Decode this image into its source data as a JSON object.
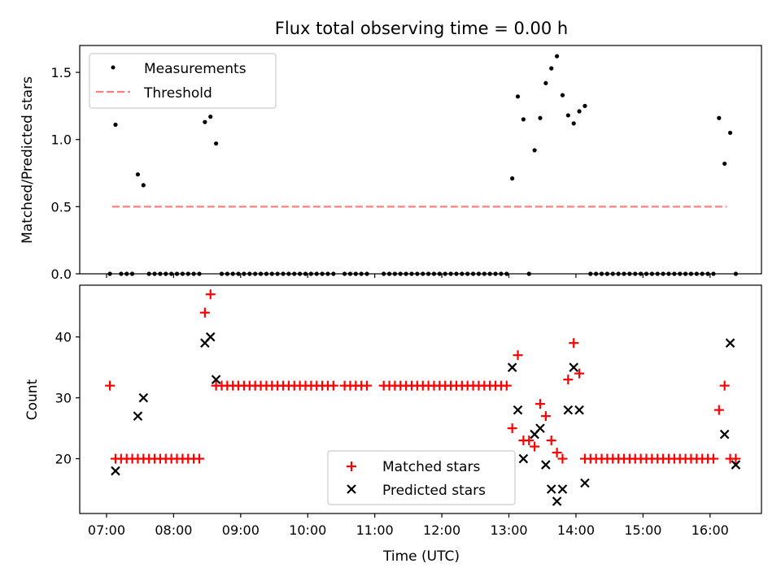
{
  "colors": {
    "measurements": "#000000",
    "threshold": "#ff7f7f",
    "matched": "#ff0000",
    "predicted": "#000000"
  },
  "chart_data": [
    {
      "type": "scatter",
      "title": "Flux total observing time = 0.00 h",
      "xlabel": "",
      "ylabel": "Matched/Predicted stars",
      "xlim": [
        "06:36",
        "16:46"
      ],
      "ylim": [
        0,
        1.7
      ],
      "yticks": [
        "0.0",
        "0.5",
        "1.0",
        "1.5"
      ],
      "legend": {
        "placement": "top-left",
        "entries": [
          "Measurements",
          "Threshold"
        ]
      },
      "threshold": {
        "name": "Threshold",
        "y": 0.5,
        "x": [
          "07:05",
          "16:15"
        ]
      },
      "series": [
        {
          "name": "Measurements",
          "x": [
            "07:03",
            "07:08",
            "07:13",
            "07:18",
            "07:23",
            "07:28",
            "07:33",
            "07:38",
            "07:43",
            "07:48",
            "07:53",
            "07:58",
            "08:03",
            "08:08",
            "08:13",
            "08:18",
            "08:23",
            "08:28",
            "08:33",
            "08:38",
            "08:43",
            "08:48",
            "08:53",
            "08:58",
            "09:03",
            "09:08",
            "09:13",
            "09:18",
            "09:23",
            "09:28",
            "09:33",
            "09:38",
            "09:43",
            "09:48",
            "09:53",
            "09:58",
            "10:03",
            "10:08",
            "10:13",
            "10:18",
            "10:23",
            "10:33",
            "10:38",
            "10:43",
            "10:48",
            "10:53",
            "11:08",
            "11:13",
            "11:18",
            "11:23",
            "11:28",
            "11:33",
            "11:38",
            "11:43",
            "11:48",
            "11:53",
            "11:58",
            "12:03",
            "12:08",
            "12:13",
            "12:18",
            "12:23",
            "12:28",
            "12:33",
            "12:38",
            "12:43",
            "12:48",
            "12:53",
            "12:58",
            "13:03",
            "13:08",
            "13:13",
            "13:18",
            "13:23",
            "13:28",
            "13:33",
            "13:38",
            "13:43",
            "13:48",
            "13:53",
            "13:58",
            "14:03",
            "14:08",
            "14:13",
            "14:18",
            "14:23",
            "14:28",
            "14:33",
            "14:38",
            "14:43",
            "14:48",
            "14:53",
            "14:58",
            "15:03",
            "15:08",
            "15:13",
            "15:18",
            "15:23",
            "15:28",
            "15:33",
            "15:38",
            "15:43",
            "15:48",
            "15:53",
            "15:58",
            "16:03",
            "16:08",
            "16:13",
            "16:18",
            "16:23"
          ],
          "y": [
            0,
            1.11,
            0,
            0,
            0,
            0.74,
            0.66,
            0,
            0,
            0,
            0,
            0,
            0,
            0,
            0,
            0,
            0,
            1.13,
            1.17,
            0.97,
            0,
            0,
            0,
            0,
            0,
            0,
            0,
            0,
            0,
            0,
            0,
            0,
            0,
            0,
            0,
            0,
            0,
            0,
            0,
            0,
            0,
            0,
            0,
            0,
            0,
            0,
            0,
            0,
            0,
            0,
            0,
            0,
            0,
            0,
            0,
            0,
            0,
            0,
            0,
            0,
            0,
            0,
            0,
            0,
            0,
            0,
            0,
            0,
            0,
            0.71,
            1.32,
            1.15,
            0,
            0.92,
            1.16,
            1.42,
            1.53,
            1.62,
            1.33,
            1.18,
            1.12,
            1.21,
            1.25,
            0,
            0,
            0,
            0,
            0,
            0,
            0,
            0,
            0,
            0,
            0,
            0,
            0,
            0,
            0,
            0,
            0,
            0,
            0,
            0,
            0,
            0,
            0,
            1.16,
            0.82,
            1.05,
            0
          ]
        }
      ]
    },
    {
      "type": "scatter",
      "title": "",
      "xlabel": "Time (UTC)",
      "ylabel": "Count",
      "xlim": [
        "06:36",
        "16:46"
      ],
      "ylim": [
        11,
        48.5
      ],
      "yticks": [
        "20",
        "30",
        "40"
      ],
      "xticks": [
        "07:00",
        "08:00",
        "09:00",
        "10:00",
        "11:00",
        "12:00",
        "13:00",
        "14:00",
        "15:00",
        "16:00"
      ],
      "legend": {
        "placement": "bottom-center",
        "entries": [
          "Matched stars",
          "Predicted stars"
        ]
      },
      "series": [
        {
          "name": "Matched stars",
          "x": [
            "07:03",
            "07:08",
            "07:13",
            "07:18",
            "07:23",
            "07:28",
            "07:33",
            "07:38",
            "07:43",
            "07:48",
            "07:53",
            "07:58",
            "08:03",
            "08:08",
            "08:13",
            "08:18",
            "08:23",
            "08:28",
            "08:33",
            "08:38",
            "08:43",
            "08:48",
            "08:53",
            "08:58",
            "09:03",
            "09:08",
            "09:13",
            "09:18",
            "09:23",
            "09:28",
            "09:33",
            "09:38",
            "09:43",
            "09:48",
            "09:53",
            "09:58",
            "10:03",
            "10:08",
            "10:13",
            "10:18",
            "10:23",
            "10:33",
            "10:38",
            "10:43",
            "10:48",
            "10:53",
            "11:08",
            "11:13",
            "11:18",
            "11:23",
            "11:28",
            "11:33",
            "11:38",
            "11:43",
            "11:48",
            "11:53",
            "11:58",
            "12:03",
            "12:08",
            "12:13",
            "12:18",
            "12:23",
            "12:28",
            "12:33",
            "12:38",
            "12:43",
            "12:48",
            "12:53",
            "12:58",
            "13:03",
            "13:08",
            "13:13",
            "13:18",
            "13:23",
            "13:28",
            "13:33",
            "13:38",
            "13:43",
            "13:48",
            "13:53",
            "13:58",
            "14:03",
            "14:08",
            "14:13",
            "14:18",
            "14:23",
            "14:28",
            "14:33",
            "14:38",
            "14:43",
            "14:48",
            "14:53",
            "14:58",
            "15:03",
            "15:08",
            "15:13",
            "15:18",
            "15:23",
            "15:28",
            "15:33",
            "15:38",
            "15:43",
            "15:48",
            "15:53",
            "15:58",
            "16:03",
            "16:08",
            "16:13",
            "16:18",
            "16:23"
          ],
          "y": [
            32,
            20,
            20,
            20,
            20,
            20,
            20,
            20,
            20,
            20,
            20,
            20,
            20,
            20,
            20,
            20,
            20,
            44,
            47,
            32,
            32,
            32,
            32,
            32,
            32,
            32,
            32,
            32,
            32,
            32,
            32,
            32,
            32,
            32,
            32,
            32,
            32,
            32,
            32,
            32,
            32,
            32,
            32,
            32,
            32,
            32,
            32,
            32,
            32,
            32,
            32,
            32,
            32,
            32,
            32,
            32,
            32,
            32,
            32,
            32,
            32,
            32,
            32,
            32,
            32,
            32,
            32,
            32,
            32,
            25,
            37,
            23,
            23,
            22,
            29,
            27,
            23,
            21,
            20,
            33,
            39,
            34,
            20,
            20,
            20,
            20,
            20,
            20,
            20,
            20,
            20,
            20,
            20,
            20,
            20,
            20,
            20,
            20,
            20,
            20,
            20,
            20,
            20,
            20,
            20,
            20,
            28,
            32,
            20,
            20
          ]
        },
        {
          "name": "Predicted stars",
          "x": [
            "07:08",
            "07:28",
            "07:33",
            "08:28",
            "08:33",
            "08:38",
            "13:03",
            "13:08",
            "13:13",
            "13:23",
            "13:28",
            "13:33",
            "13:38",
            "13:43",
            "13:48",
            "13:53",
            "13:58",
            "14:03",
            "14:08",
            "16:13",
            "16:18",
            "16:23"
          ],
          "y": [
            18,
            27,
            30,
            39,
            40,
            33,
            35,
            28,
            20,
            24,
            25,
            19,
            15,
            13,
            15,
            28,
            35,
            28,
            16,
            24,
            39,
            19
          ]
        }
      ]
    }
  ]
}
